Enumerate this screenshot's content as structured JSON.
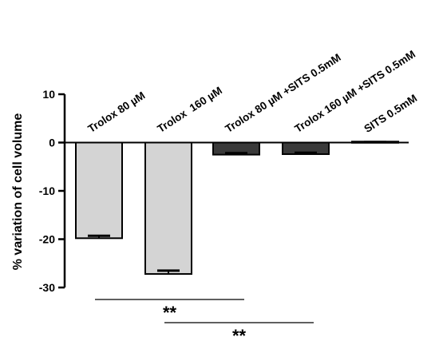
{
  "chart_data": {
    "type": "bar",
    "title": "",
    "xlabel": "",
    "ylabel": "% variation of cell volume",
    "ylim": [
      -30,
      10
    ],
    "yticks": [
      10,
      0,
      -10,
      -20,
      -30
    ],
    "grid": false,
    "legend": "none",
    "categories": [
      "Trolox 80 µM",
      "Trolox  160 µM",
      "Trolox 80 µM +SITS 0.5mM",
      "Trolox 160 µM +SITS 0.5mM",
      "SITS 0.5mM"
    ],
    "values": [
      -19.8,
      -27.2,
      -2.5,
      -2.4,
      0.2
    ],
    "errors": [
      0.5,
      0.7,
      0.3,
      0.3,
      0.1
    ],
    "bar_colors": [
      "#d4d4d4",
      "#d4d4d4",
      "#3a3a3a",
      "#3a3a3a",
      "#3a3a3a"
    ],
    "significance": [
      {
        "label": "**",
        "from": 0,
        "to": 2
      },
      {
        "label": "**",
        "from": 1,
        "to": 3
      }
    ]
  }
}
